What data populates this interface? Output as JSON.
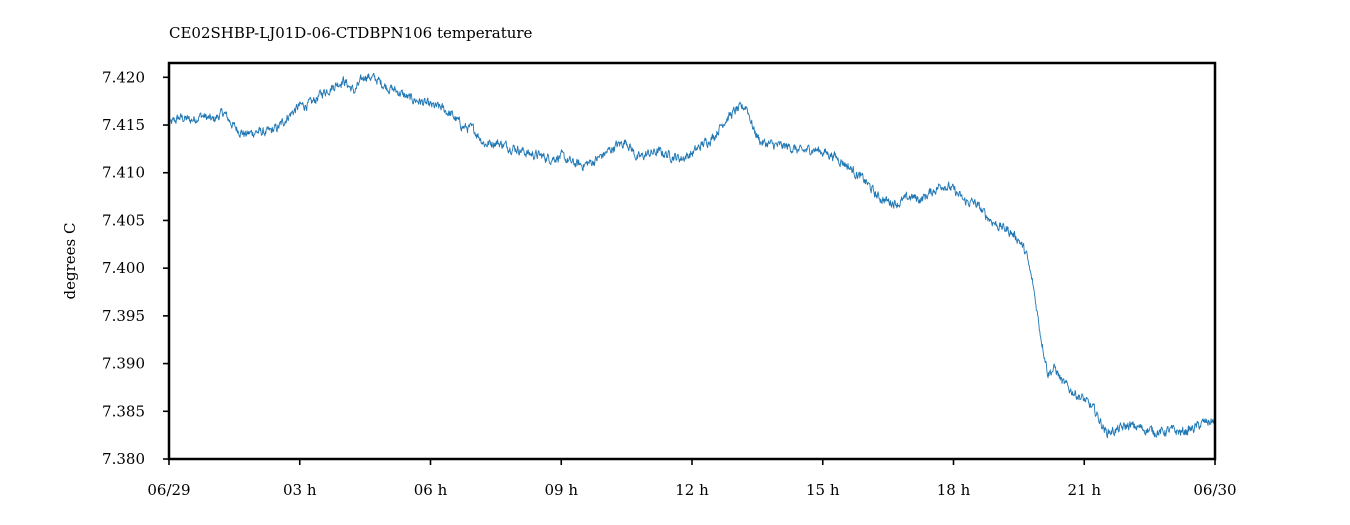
{
  "chart_data": {
    "type": "line",
    "title": "CE02SHBP-LJ01D-06-CTDBPN106 temperature",
    "xlabel": "",
    "ylabel": "degrees C",
    "xlim": [
      "06/29 00:00",
      "06/30 00:00"
    ],
    "ylim": [
      7.38,
      7.4215
    ],
    "grid": false,
    "x_ticks": [
      "06/29",
      "03 h",
      "06 h",
      "09 h",
      "12 h",
      "15 h",
      "18 h",
      "21 h",
      "06/30"
    ],
    "y_ticks": [
      "7.380",
      "7.385",
      "7.390",
      "7.395",
      "7.400",
      "7.405",
      "7.410",
      "7.415",
      "7.420"
    ],
    "series": [
      {
        "color": "#1f77b4",
        "x": [
          "00:00",
          "00:15",
          "00:30",
          "00:45",
          "01:00",
          "01:15",
          "01:30",
          "01:45",
          "02:00",
          "02:15",
          "02:30",
          "02:45",
          "03:00",
          "03:15",
          "03:30",
          "03:45",
          "04:00",
          "04:15",
          "04:30",
          "04:45",
          "05:00",
          "05:15",
          "05:30",
          "05:45",
          "06:00",
          "06:15",
          "06:30",
          "06:45",
          "07:00",
          "07:15",
          "07:30",
          "07:45",
          "08:00",
          "08:15",
          "08:30",
          "08:45",
          "09:00",
          "09:15",
          "09:30",
          "09:45",
          "10:00",
          "10:15",
          "10:30",
          "10:45",
          "11:00",
          "11:15",
          "11:30",
          "11:45",
          "12:00",
          "12:15",
          "12:30",
          "12:45",
          "13:00",
          "13:15",
          "13:25",
          "13:35",
          "13:45",
          "14:00",
          "14:15",
          "14:30",
          "14:45",
          "15:00",
          "15:15",
          "15:30",
          "15:45",
          "16:00",
          "16:15",
          "16:30",
          "16:45",
          "17:00",
          "17:15",
          "17:30",
          "17:45",
          "18:00",
          "18:15",
          "18:30",
          "18:45",
          "19:00",
          "19:15",
          "19:30",
          "19:40",
          "19:50",
          "20:00",
          "20:10",
          "20:20",
          "20:30",
          "20:45",
          "21:00",
          "21:15",
          "21:30",
          "21:45",
          "22:00",
          "22:15",
          "22:30",
          "22:45",
          "23:00",
          "23:15",
          "23:30",
          "23:45",
          "24:00"
        ],
        "values": [
          7.415,
          7.4158,
          7.4155,
          7.416,
          7.4155,
          7.4163,
          7.4148,
          7.414,
          7.4143,
          7.4142,
          7.4147,
          7.416,
          7.417,
          7.4172,
          7.4183,
          7.419,
          7.4197,
          7.4185,
          7.4202,
          7.4198,
          7.419,
          7.4185,
          7.4178,
          7.4175,
          7.417,
          7.4168,
          7.416,
          7.4148,
          7.4145,
          7.413,
          7.4132,
          7.4128,
          7.4125,
          7.412,
          7.4118,
          7.4115,
          7.4117,
          7.411,
          7.4108,
          7.4112,
          7.412,
          7.4128,
          7.4133,
          7.4115,
          7.412,
          7.4122,
          7.4118,
          7.4115,
          7.412,
          7.413,
          7.4138,
          7.4155,
          7.4165,
          7.417,
          7.4145,
          7.4132,
          7.413,
          7.4128,
          7.4127,
          7.4122,
          7.4125,
          7.4122,
          7.4118,
          7.411,
          7.41,
          7.409,
          7.4075,
          7.407,
          7.4068,
          7.4075,
          7.4072,
          7.408,
          7.4088,
          7.4082,
          7.407,
          7.4068,
          7.4055,
          7.4045,
          7.404,
          7.403,
          7.4015,
          7.398,
          7.393,
          7.389,
          7.3895,
          7.388,
          7.387,
          7.3862,
          7.385,
          7.3828,
          7.383,
          7.3835,
          7.3833,
          7.383,
          7.3828,
          7.383,
          7.3828,
          7.3832,
          7.3838,
          7.384
        ]
      }
    ]
  }
}
